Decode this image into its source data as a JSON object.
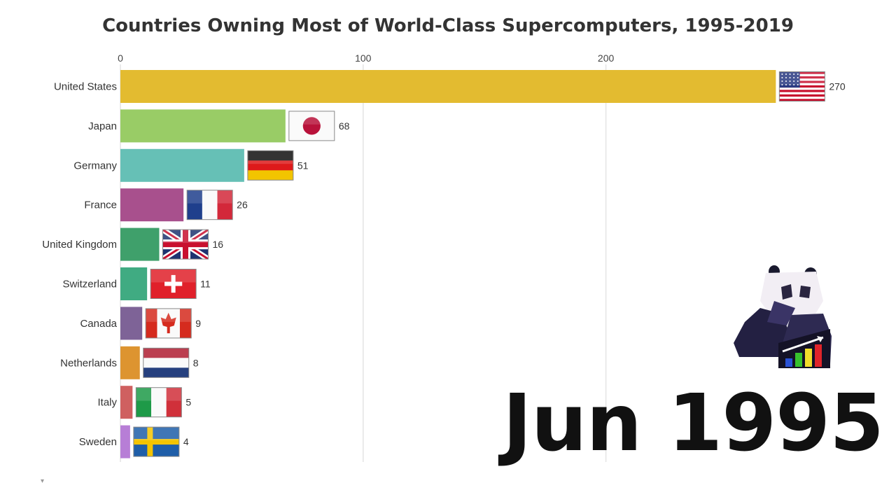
{
  "chart_data": {
    "type": "bar",
    "orientation": "horizontal",
    "title": "Countries Owning Most of World-Class Supercomputers, 1995-2019",
    "date_label": "Jun 1995",
    "xlim": [
      0,
      290
    ],
    "x_ticks": [
      0,
      100,
      200
    ],
    "grid": true,
    "categories": [
      "United States",
      "Japan",
      "Germany",
      "France",
      "United Kingdom",
      "Switzerland",
      "Canada",
      "Netherlands",
      "Italy",
      "Sweden"
    ],
    "values": [
      270,
      68,
      51,
      26,
      16,
      11,
      9,
      8,
      5,
      4
    ],
    "colors": [
      "#e3bb30",
      "#99cc66",
      "#66c0b6",
      "#a8508d",
      "#3fa06b",
      "#40ab82",
      "#7e6397",
      "#dd9430",
      "#cf6060",
      "#b77ed6"
    ],
    "flags": [
      "us-flag-icon",
      "japan-flag-icon",
      "germany-flag-icon",
      "france-flag-icon",
      "uk-flag-icon",
      "switzerland-flag-icon",
      "canada-flag-icon",
      "netherlands-flag-icon",
      "italy-flag-icon",
      "sweden-flag-icon"
    ]
  },
  "scroll_indicator": "▾"
}
